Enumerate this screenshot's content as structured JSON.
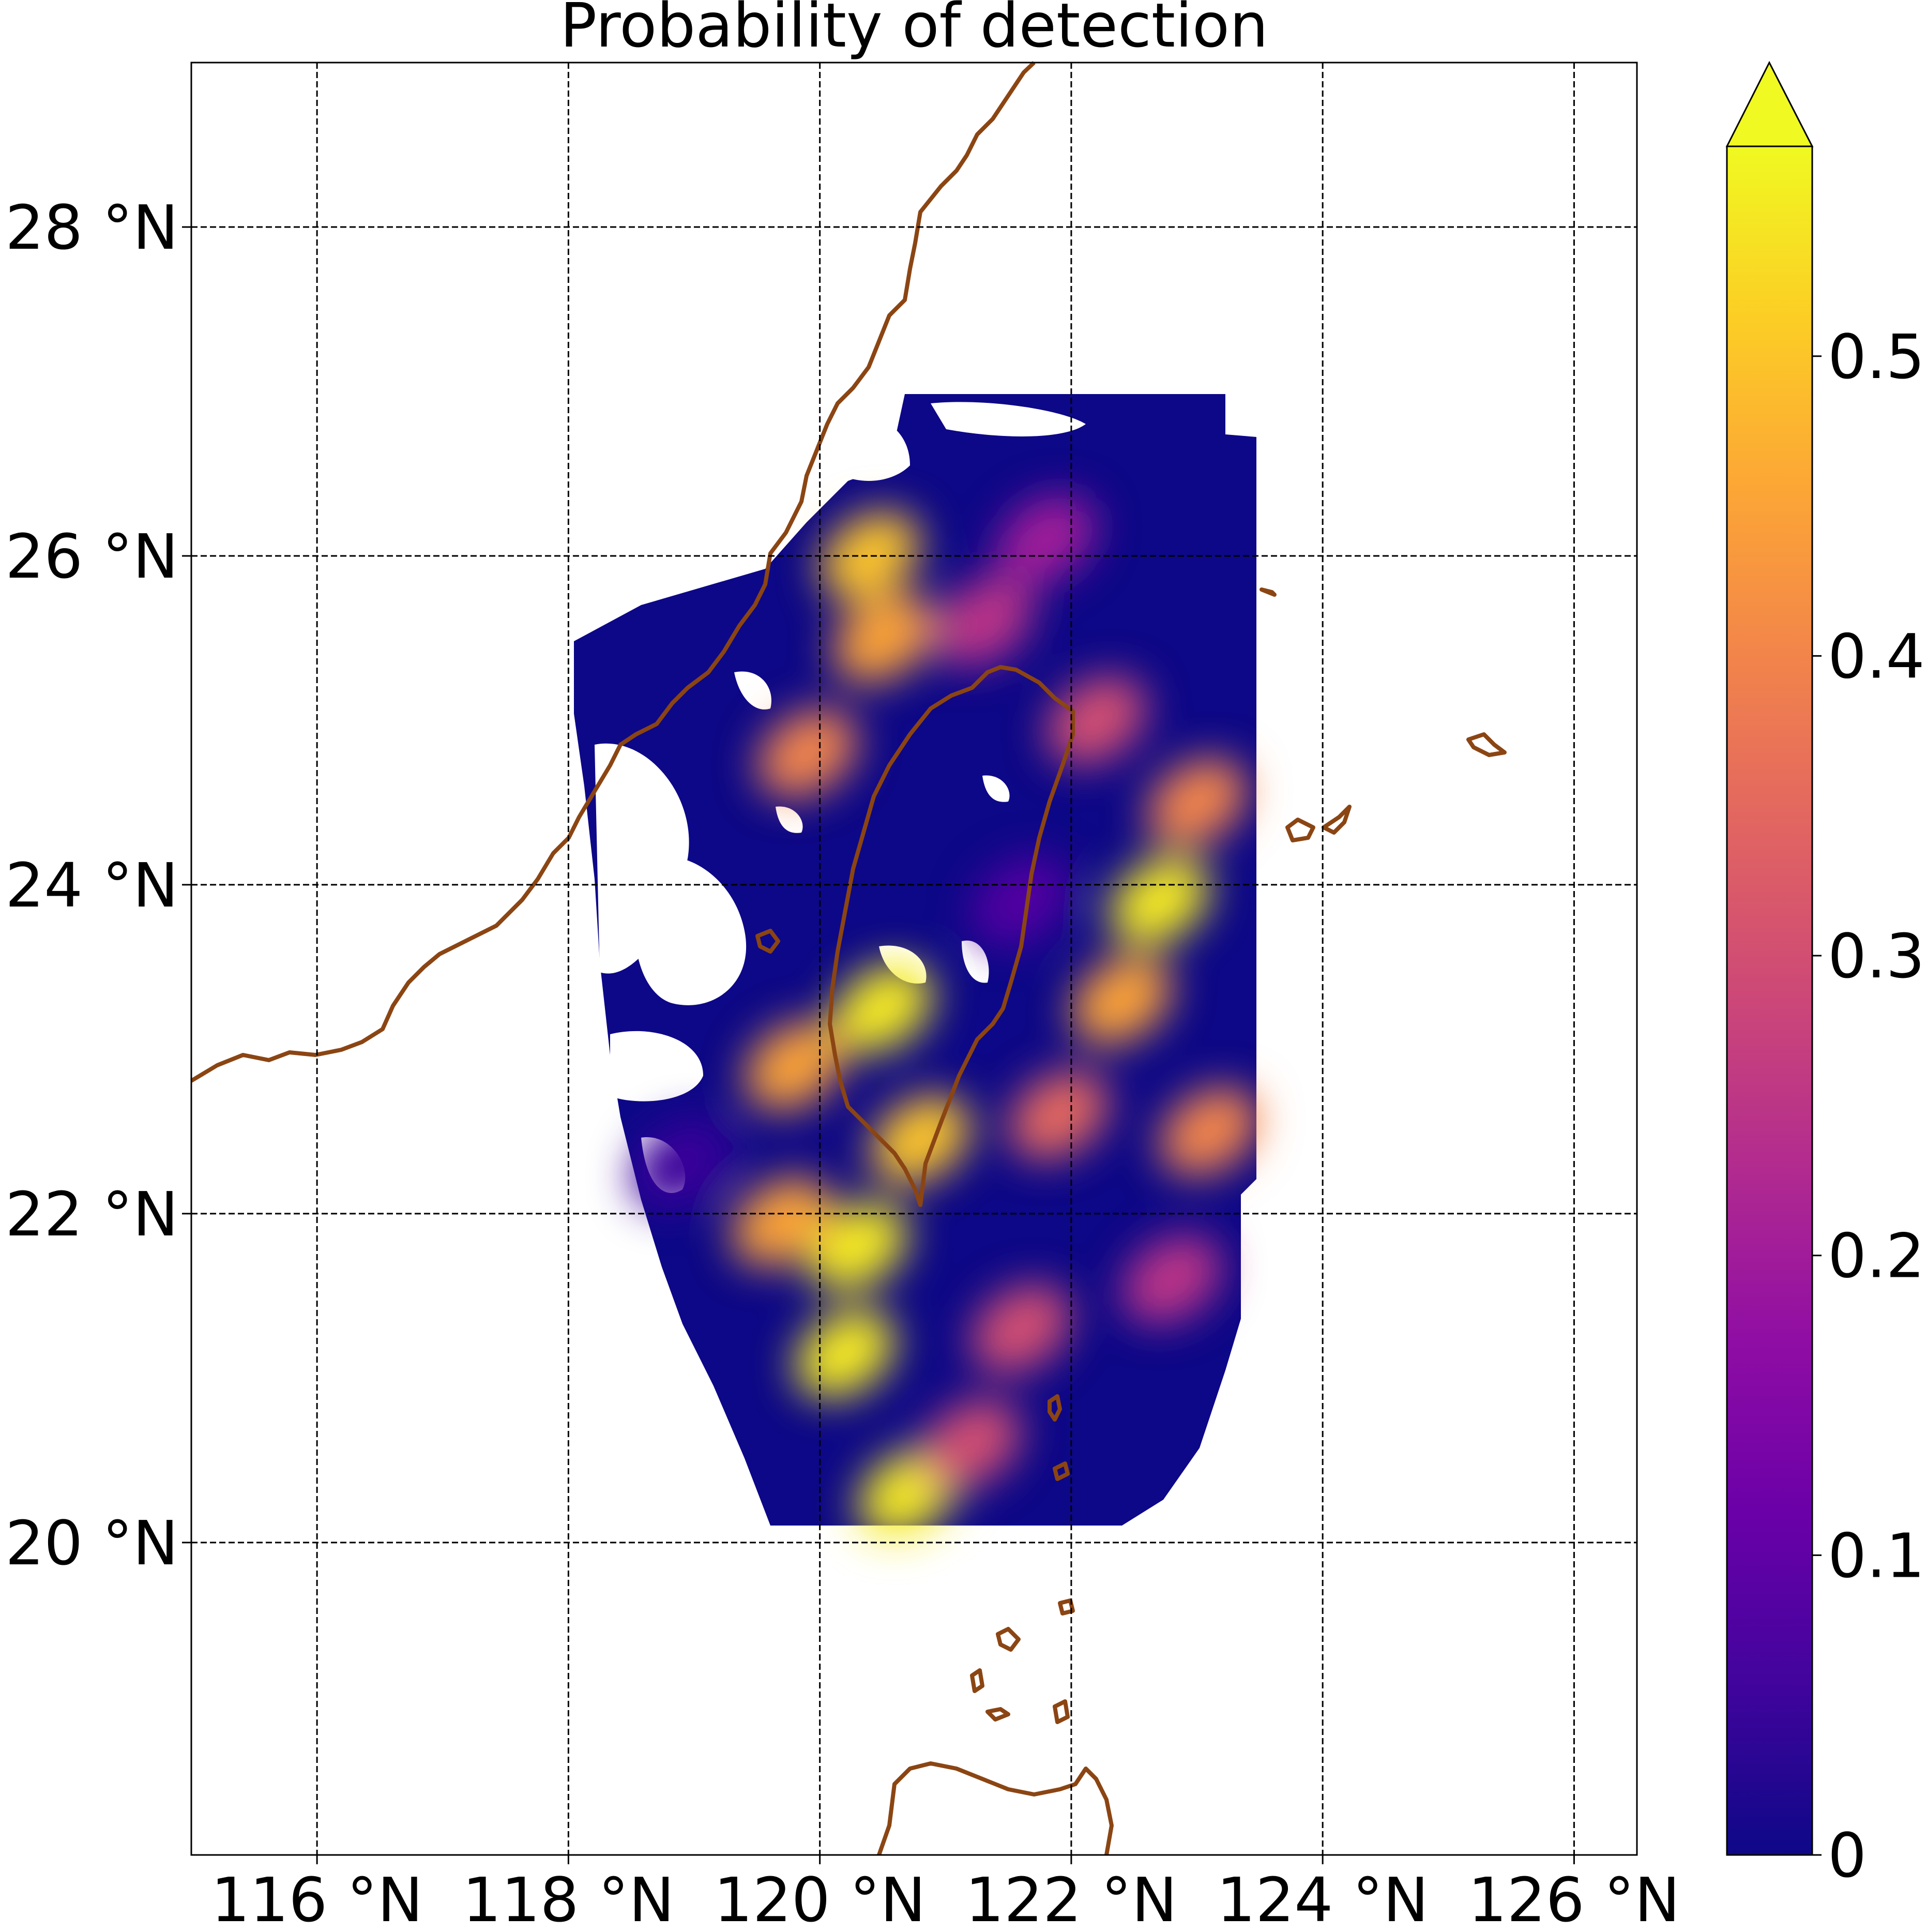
{
  "chart_data": {
    "type": "heatmap",
    "title": "Probability of detection",
    "xlabel": "",
    "ylabel": "",
    "xlim": [
      115,
      126.5
    ],
    "ylim": [
      18.1,
      29.0
    ],
    "grid": true,
    "x_ticks": [
      {
        "value": 116,
        "label": "116 °N"
      },
      {
        "value": 118,
        "label": "118 °N"
      },
      {
        "value": 120,
        "label": "120 °N"
      },
      {
        "value": 122,
        "label": "122 °N"
      },
      {
        "value": 124,
        "label": "124 °N"
      },
      {
        "value": 126,
        "label": "126 °N"
      }
    ],
    "y_ticks": [
      {
        "value": 20,
        "label": "20 °N"
      },
      {
        "value": 22,
        "label": "22 °N"
      },
      {
        "value": 24,
        "label": "24 °N"
      },
      {
        "value": 26,
        "label": "26 °N"
      },
      {
        "value": 28,
        "label": "28 °N"
      }
    ],
    "colorbar": {
      "colormap": "plasma",
      "min": 0,
      "max": 0.57,
      "extend": "max",
      "ticks": [
        {
          "value": 0,
          "label": "0"
        },
        {
          "value": 0.1,
          "label": "0.1"
        },
        {
          "value": 0.2,
          "label": "0.2"
        },
        {
          "value": 0.3,
          "label": "0.3"
        },
        {
          "value": 0.4,
          "label": "0.4"
        },
        {
          "value": 0.5,
          "label": "0.5"
        }
      ]
    },
    "coastline_color": "#8b4513",
    "data_extent": {
      "lon": [
        118.0,
        123.5
      ],
      "lat": [
        20.05,
        26.95
      ]
    },
    "high_detection_regions": [
      {
        "lon": 122.7,
        "lat": 23.9,
        "value": 0.55
      },
      {
        "lon": 122.4,
        "lat": 23.3,
        "value": 0.45
      },
      {
        "lon": 123.0,
        "lat": 24.5,
        "value": 0.4
      },
      {
        "lon": 120.5,
        "lat": 23.25,
        "value": 0.55
      },
      {
        "lon": 119.8,
        "lat": 22.9,
        "value": 0.45
      },
      {
        "lon": 120.8,
        "lat": 22.45,
        "value": 0.5
      },
      {
        "lon": 120.3,
        "lat": 21.8,
        "value": 0.55
      },
      {
        "lon": 120.2,
        "lat": 21.15,
        "value": 0.55
      },
      {
        "lon": 120.7,
        "lat": 20.3,
        "value": 0.55
      },
      {
        "lon": 119.7,
        "lat": 21.95,
        "value": 0.45
      },
      {
        "lon": 120.4,
        "lat": 26.0,
        "value": 0.5
      },
      {
        "lon": 120.5,
        "lat": 25.5,
        "value": 0.45
      },
      {
        "lon": 119.9,
        "lat": 24.8,
        "value": 0.4
      },
      {
        "lon": 121.9,
        "lat": 22.6,
        "value": 0.35
      },
      {
        "lon": 123.1,
        "lat": 22.5,
        "value": 0.4
      },
      {
        "lon": 121.6,
        "lat": 21.3,
        "value": 0.3
      },
      {
        "lon": 121.2,
        "lat": 20.6,
        "value": 0.3
      },
      {
        "lon": 122.8,
        "lat": 21.6,
        "value": 0.25
      },
      {
        "lon": 121.3,
        "lat": 25.6,
        "value": 0.25
      },
      {
        "lon": 121.8,
        "lat": 26.1,
        "value": 0.2
      },
      {
        "lon": 122.2,
        "lat": 25.0,
        "value": 0.3
      },
      {
        "lon": 121.6,
        "lat": 23.9,
        "value": 0.08
      },
      {
        "lon": 118.9,
        "lat": 22.3,
        "value": 0.05
      }
    ]
  }
}
